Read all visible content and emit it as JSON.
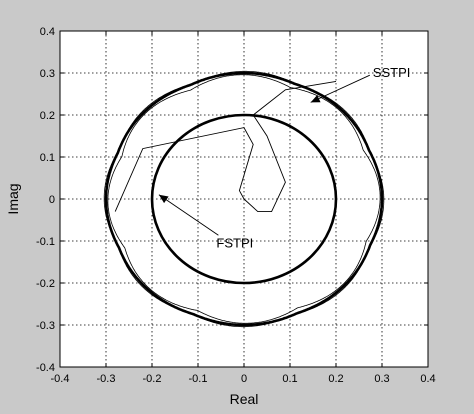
{
  "chart_data": {
    "type": "line",
    "title": "",
    "xlabel": "Real",
    "ylabel": "Imag",
    "xlim": [
      -0.4,
      0.4
    ],
    "ylim": [
      -0.4,
      0.4
    ],
    "xticks": [
      -0.4,
      -0.3,
      -0.2,
      -0.1,
      0,
      0.1,
      0.2,
      0.3,
      0.4
    ],
    "yticks": [
      -0.4,
      -0.3,
      -0.2,
      -0.1,
      0,
      0.1,
      0.2,
      0.3,
      0.4
    ],
    "xtick_labels": [
      "-0.4",
      "-0.3",
      "-0.2",
      "-0.1",
      "0",
      "0.1",
      "0.2",
      "0.3",
      "0.4"
    ],
    "ytick_labels": [
      "-0.4",
      "-0.3",
      "-0.2",
      "-0.1",
      "0",
      "0.1",
      "0.2",
      "0.3",
      "0.4"
    ],
    "grid": true,
    "grid_style": "dotted",
    "background": "#c9c9c9",
    "plot_background": "#ffffff",
    "line_color": "#000000",
    "series": [
      {
        "name": "SSTPI",
        "shape": "octagonal locus",
        "radius": 0.3,
        "trajectory": [
          [
            0,
            0
          ],
          [
            0.03,
            -0.03
          ],
          [
            0.06,
            -0.03
          ],
          [
            0.09,
            0.04
          ],
          [
            0.05,
            0.15
          ],
          [
            0.02,
            0.2
          ],
          [
            0.09,
            0.26
          ],
          [
            0.2,
            0.28
          ]
        ]
      },
      {
        "name": "FSTPI",
        "shape": "circle",
        "radius": 0.2,
        "trajectory": [
          [
            0,
            0
          ],
          [
            -0.01,
            0.02
          ],
          [
            0.02,
            0.13
          ],
          [
            0,
            0.17
          ],
          [
            -0.22,
            0.12
          ],
          [
            -0.28,
            -0.03
          ]
        ]
      }
    ],
    "annotations": [
      {
        "text": "SSTPI",
        "x": 0.28,
        "y": 0.29,
        "arrow_to": [
          0.145,
          0.23
        ]
      },
      {
        "text": "FSTPI",
        "x": -0.06,
        "y": -0.115,
        "arrow_to": [
          -0.185,
          0.01
        ]
      }
    ]
  }
}
